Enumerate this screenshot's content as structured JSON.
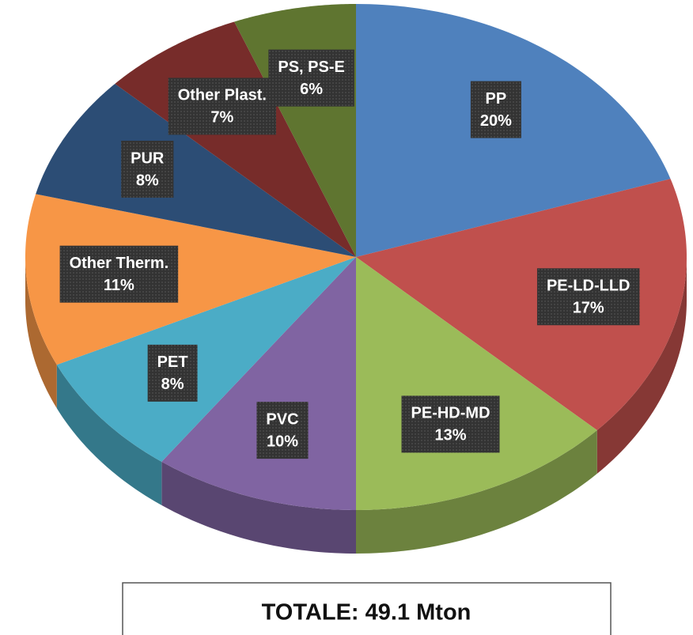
{
  "chart_data": {
    "type": "pie",
    "title": "TOTALE: 49.1 Mton",
    "categories": [
      "PP",
      "PE-LD-LLD",
      "PE-HD-MD",
      "PVC",
      "PET",
      "Other Therm.",
      "PUR",
      "Other Plast.",
      "PS, PS-E"
    ],
    "values": [
      20,
      17,
      13,
      10,
      8,
      11,
      8,
      7,
      6
    ],
    "value_labels": [
      "20%",
      "17%",
      "13%",
      "10%",
      "8%",
      "11%",
      "8%",
      "7%",
      "6%"
    ],
    "colors": [
      "#4f81bd",
      "#c0504d",
      "#9bbb59",
      "#8064a2",
      "#4bacc6",
      "#f79646",
      "#2c4d75",
      "#772c2a",
      "#5f7530"
    ]
  }
}
